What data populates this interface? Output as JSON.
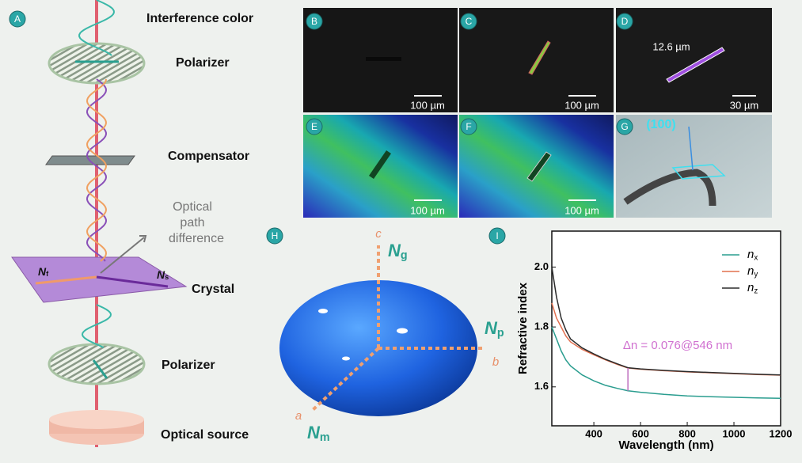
{
  "panel_labels": [
    "A",
    "B",
    "C",
    "D",
    "E",
    "F",
    "G",
    "H",
    "I"
  ],
  "schematic": {
    "interference": "Interference color",
    "polarizer_top": "Polarizer",
    "compensator": "Compensator",
    "optical_path": [
      "Optical",
      "path",
      "difference"
    ],
    "crystal": "Crystal",
    "polarizer_bottom": "Polarizer",
    "source": "Optical source",
    "nf": "Nf",
    "ns": "Ns"
  },
  "micrographs": {
    "b_scale": "100 µm",
    "c_scale": "100 µm",
    "d_length": "12.6 µm",
    "d_scale": "30 µm",
    "e_scale": "100 µm",
    "f_scale": "100 µm",
    "g_face": "(100)"
  },
  "ellipsoid": {
    "c": "c",
    "a": "a",
    "b": "b",
    "ng": "Ng",
    "np": "Np",
    "nm": "Nm"
  },
  "chart_data": {
    "type": "line",
    "x_label": "Wavelength (nm)",
    "y_label": "Refractive index",
    "annotation": "Δn = 0.076@546 nm",
    "x": [
      220,
      240,
      260,
      280,
      300,
      350,
      400,
      450,
      500,
      546,
      600,
      700,
      800,
      900,
      1000,
      1100,
      1200
    ],
    "series": [
      {
        "name": "nx",
        "color": "#2a9d8f",
        "values": [
          1.8,
          1.76,
          1.72,
          1.69,
          1.67,
          1.64,
          1.62,
          1.605,
          1.595,
          1.587,
          1.582,
          1.575,
          1.57,
          1.567,
          1.565,
          1.563,
          1.562
        ]
      },
      {
        "name": "ny",
        "color": "#e2704f",
        "values": [
          1.88,
          1.83,
          1.8,
          1.77,
          1.75,
          1.725,
          1.707,
          1.69,
          1.675,
          1.663,
          1.659,
          1.654,
          1.65,
          1.647,
          1.644,
          1.641,
          1.639
        ]
      },
      {
        "name": "nz",
        "color": "#2b2b2b",
        "values": [
          2.0,
          1.9,
          1.83,
          1.79,
          1.76,
          1.73,
          1.71,
          1.692,
          1.677,
          1.664,
          1.66,
          1.655,
          1.651,
          1.648,
          1.645,
          1.642,
          1.64
        ]
      }
    ],
    "xlim": [
      220,
      1200
    ],
    "ylim": [
      1.47,
      2.12
    ],
    "xticks": [
      400,
      600,
      800,
      1000,
      1200
    ],
    "yticks": [
      1.6,
      1.8,
      {
        "value": 2,
        "label": "2.0"
      }
    ]
  }
}
